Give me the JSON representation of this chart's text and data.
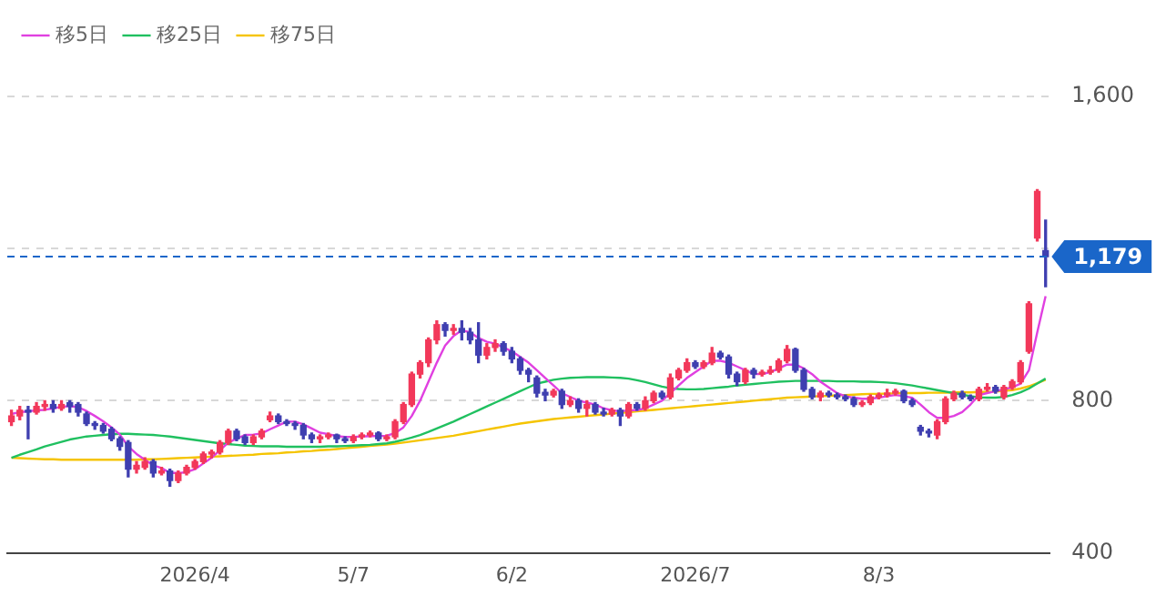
{
  "chart_data": {
    "type": "candlestick",
    "legend": "top left",
    "grid": "y",
    "ylim": [
      400,
      1600
    ],
    "yticks": [
      400,
      800,
      {
        "value": 1200,
        "label": null
      },
      {
        "value": 1600,
        "label": "1,600"
      }
    ],
    "ref_lines": [
      {
        "axis": "y",
        "value": 1179,
        "label": "1,179",
        "color": "#1a66c9",
        "line_style": "dashed"
      }
    ],
    "categories": [
      null,
      null,
      null,
      null,
      null,
      null,
      null,
      null,
      null,
      null,
      null,
      null,
      null,
      null,
      null,
      null,
      null,
      null,
      null,
      null,
      null,
      null,
      "2026/4",
      null,
      null,
      null,
      null,
      null,
      null,
      null,
      null,
      null,
      null,
      null,
      null,
      null,
      null,
      null,
      null,
      null,
      null,
      "5/7",
      null,
      null,
      null,
      null,
      null,
      null,
      null,
      null,
      null,
      null,
      null,
      null,
      null,
      null,
      null,
      null,
      null,
      null,
      "6/2",
      null,
      null,
      null,
      null,
      null,
      null,
      null,
      null,
      null,
      null,
      null,
      null,
      null,
      null,
      null,
      null,
      null,
      null,
      null,
      null,
      null,
      "2026/7",
      null,
      null,
      null,
      null,
      null,
      null,
      null,
      null,
      null,
      null,
      null,
      null,
      null,
      null,
      null,
      null,
      null,
      null,
      null,
      null,
      null,
      "8/3",
      null,
      null,
      null,
      null,
      null,
      null,
      null,
      null,
      null,
      null,
      null,
      null,
      null,
      null,
      null,
      null,
      null,
      null,
      null,
      null
    ],
    "ohlc": [
      [
        745,
        775,
        735,
        760
      ],
      [
        760,
        785,
        750,
        775
      ],
      [
        775,
        785,
        700,
        770
      ],
      [
        770,
        795,
        765,
        785
      ],
      [
        785,
        800,
        775,
        790
      ],
      [
        790,
        800,
        770,
        780
      ],
      [
        780,
        800,
        775,
        790
      ],
      [
        795,
        800,
        770,
        785
      ],
      [
        790,
        795,
        760,
        770
      ],
      [
        765,
        770,
        735,
        740
      ],
      [
        740,
        745,
        725,
        735
      ],
      [
        735,
        740,
        715,
        720
      ],
      [
        725,
        730,
        695,
        700
      ],
      [
        700,
        705,
        670,
        680
      ],
      [
        690,
        695,
        600,
        620
      ],
      [
        620,
        640,
        610,
        630
      ],
      [
        625,
        650,
        620,
        640
      ],
      [
        640,
        645,
        600,
        610
      ],
      [
        610,
        625,
        605,
        615
      ],
      [
        615,
        620,
        575,
        590
      ],
      [
        590,
        615,
        585,
        610
      ],
      [
        610,
        630,
        605,
        625
      ],
      [
        625,
        645,
        620,
        640
      ],
      [
        640,
        665,
        635,
        660
      ],
      [
        660,
        670,
        650,
        665
      ],
      [
        665,
        695,
        660,
        690
      ],
      [
        690,
        725,
        685,
        720
      ],
      [
        720,
        725,
        695,
        700
      ],
      [
        705,
        710,
        685,
        690
      ],
      [
        690,
        710,
        685,
        705
      ],
      [
        705,
        725,
        700,
        720
      ],
      [
        750,
        770,
        745,
        760
      ],
      [
        760,
        765,
        740,
        745
      ],
      [
        745,
        750,
        735,
        740
      ],
      [
        740,
        745,
        725,
        735
      ],
      [
        735,
        740,
        700,
        710
      ],
      [
        710,
        715,
        690,
        700
      ],
      [
        700,
        710,
        690,
        705
      ],
      [
        705,
        715,
        700,
        710
      ],
      [
        710,
        712,
        690,
        700
      ],
      [
        700,
        705,
        690,
        695
      ],
      [
        695,
        710,
        690,
        705
      ],
      [
        705,
        715,
        700,
        710
      ],
      [
        710,
        720,
        705,
        715
      ],
      [
        715,
        718,
        695,
        700
      ],
      [
        700,
        710,
        695,
        705
      ],
      [
        705,
        750,
        700,
        745
      ],
      [
        745,
        795,
        740,
        790
      ],
      [
        790,
        875,
        785,
        870
      ],
      [
        870,
        905,
        860,
        900
      ],
      [
        900,
        965,
        890,
        960
      ],
      [
        960,
        1010,
        950,
        1000
      ],
      [
        1000,
        1005,
        970,
        985
      ],
      [
        985,
        1000,
        975,
        990
      ],
      [
        990,
        1010,
        960,
        980
      ],
      [
        980,
        990,
        950,
        960
      ],
      [
        960,
        1005,
        900,
        920
      ],
      [
        920,
        950,
        910,
        940
      ],
      [
        940,
        960,
        930,
        950
      ],
      [
        950,
        955,
        920,
        930
      ],
      [
        930,
        940,
        900,
        910
      ],
      [
        910,
        915,
        870,
        880
      ],
      [
        880,
        885,
        850,
        870
      ],
      [
        860,
        865,
        810,
        820
      ],
      [
        822,
        830,
        800,
        815
      ],
      [
        815,
        830,
        810,
        825
      ],
      [
        825,
        830,
        780,
        790
      ],
      [
        790,
        810,
        785,
        800
      ],
      [
        800,
        805,
        770,
        780
      ],
      [
        780,
        800,
        760,
        790
      ],
      [
        790,
        795,
        765,
        770
      ],
      [
        770,
        780,
        760,
        765
      ],
      [
        765,
        780,
        760,
        775
      ],
      [
        775,
        780,
        735,
        760
      ],
      [
        760,
        795,
        755,
        790
      ],
      [
        790,
        795,
        775,
        780
      ],
      [
        780,
        810,
        775,
        800
      ],
      [
        800,
        825,
        795,
        820
      ],
      [
        820,
        825,
        805,
        810
      ],
      [
        810,
        870,
        805,
        860
      ],
      [
        860,
        885,
        855,
        880
      ],
      [
        880,
        910,
        875,
        900
      ],
      [
        900,
        905,
        885,
        890
      ],
      [
        890,
        905,
        885,
        900
      ],
      [
        900,
        940,
        895,
        925
      ],
      [
        925,
        930,
        910,
        915
      ],
      [
        915,
        920,
        860,
        870
      ],
      [
        870,
        875,
        840,
        850
      ],
      [
        850,
        885,
        845,
        880
      ],
      [
        880,
        885,
        860,
        870
      ],
      [
        870,
        880,
        865,
        875
      ],
      [
        875,
        890,
        870,
        880
      ],
      [
        880,
        910,
        875,
        905
      ],
      [
        905,
        945,
        900,
        935
      ],
      [
        935,
        938,
        875,
        880
      ],
      [
        880,
        885,
        825,
        830
      ],
      [
        830,
        835,
        805,
        810
      ],
      [
        810,
        825,
        800,
        820
      ],
      [
        820,
        825,
        810,
        815
      ],
      [
        815,
        820,
        805,
        810
      ],
      [
        810,
        815,
        800,
        805
      ],
      [
        805,
        810,
        785,
        790
      ],
      [
        790,
        800,
        785,
        795
      ],
      [
        795,
        815,
        790,
        810
      ],
      [
        810,
        820,
        805,
        815
      ],
      [
        815,
        830,
        810,
        820
      ],
      [
        820,
        830,
        815,
        825
      ],
      [
        825,
        828,
        795,
        800
      ],
      [
        800,
        805,
        785,
        790
      ],
      [
        730,
        735,
        710,
        720
      ],
      [
        720,
        725,
        705,
        715
      ],
      [
        710,
        750,
        700,
        745
      ],
      [
        745,
        810,
        740,
        805
      ],
      [
        805,
        825,
        800,
        820
      ],
      [
        820,
        825,
        805,
        810
      ],
      [
        810,
        815,
        800,
        805
      ],
      [
        805,
        835,
        800,
        830
      ],
      [
        830,
        845,
        825,
        835
      ],
      [
        835,
        840,
        820,
        825
      ],
      [
        810,
        840,
        805,
        835
      ],
      [
        835,
        855,
        830,
        850
      ],
      [
        850,
        905,
        845,
        900
      ],
      [
        930,
        1060,
        925,
        1055
      ],
      [
        1228,
        1355,
        1220,
        1350
      ],
      [
        1195,
        1275,
        1100,
        1179
      ]
    ],
    "series": [
      {
        "name": "移5日",
        "type": "line",
        "color": "#e040e0",
        "values": [
          765,
          770,
          772,
          775,
          776,
          780,
          784,
          786,
          783,
          773,
          760,
          746,
          730,
          711,
          680,
          660,
          645,
          630,
          623,
          610,
          610,
          612,
          620,
          635,
          650,
          670,
          690,
          700,
          710,
          711,
          714,
          725,
          735,
          745,
          745,
          738,
          727,
          716,
          712,
          707,
          705,
          705,
          706,
          707,
          707,
          708,
          715,
          730,
          760,
          800,
          850,
          900,
          945,
          970,
          985,
          980,
          965,
          955,
          950,
          940,
          930,
          915,
          900,
          880,
          860,
          840,
          820,
          810,
          800,
          795,
          790,
          780,
          775,
          772,
          775,
          775,
          780,
          790,
          800,
          820,
          840,
          860,
          875,
          890,
          905,
          905,
          900,
          890,
          880,
          870,
          870,
          875,
          885,
          895,
          895,
          885,
          870,
          850,
          835,
          820,
          812,
          808,
          805,
          805,
          808,
          812,
          815,
          812,
          808,
          790,
          770,
          755,
          755,
          760,
          770,
          790,
          815,
          820,
          825,
          830,
          835,
          845,
          880,
          980,
          1075
        ]
      },
      {
        "name": "移25日",
        "type": "line",
        "color": "#20c060",
        "values": [
          650,
          658,
          665,
          672,
          680,
          686,
          692,
          698,
          702,
          706,
          708,
          710,
          712,
          713,
          713,
          712,
          711,
          710,
          708,
          706,
          703,
          700,
          697,
          694,
          691,
          688,
          686,
          684,
          682,
          681,
          680,
          680,
          680,
          679,
          679,
          679,
          679,
          679,
          680,
          680,
          681,
          682,
          683,
          684,
          686,
          688,
          692,
          697,
          703,
          710,
          718,
          727,
          736,
          745,
          755,
          765,
          775,
          785,
          795,
          805,
          815,
          825,
          835,
          845,
          850,
          855,
          858,
          860,
          861,
          862,
          862,
          862,
          861,
          860,
          858,
          854,
          849,
          843,
          837,
          833,
          831,
          830,
          830,
          831,
          833,
          835,
          837,
          840,
          842,
          844,
          846,
          848,
          850,
          851,
          852,
          852,
          852,
          852,
          852,
          851,
          851,
          851,
          850,
          850,
          849,
          848,
          846,
          843,
          840,
          836,
          832,
          828,
          824,
          820,
          816,
          812,
          809,
          808,
          808,
          810,
          815,
          822,
          832,
          845,
          858
        ]
      },
      {
        "name": "移75日",
        "type": "line",
        "color": "#f5c400",
        "values": [
          650,
          649,
          648,
          647,
          646,
          646,
          645,
          645,
          645,
          645,
          645,
          645,
          645,
          645,
          645,
          645,
          646,
          646,
          647,
          648,
          649,
          650,
          651,
          652,
          653,
          654,
          655,
          656,
          657,
          658,
          660,
          661,
          662,
          664,
          665,
          667,
          668,
          670,
          671,
          673,
          675,
          677,
          679,
          681,
          683,
          685,
          687,
          690,
          693,
          696,
          699,
          702,
          705,
          708,
          712,
          716,
          720,
          724,
          728,
          732,
          736,
          740,
          743,
          746,
          749,
          752,
          754,
          756,
          758,
          760,
          762,
          764,
          766,
          768,
          770,
          772,
          774,
          776,
          778,
          780,
          782,
          784,
          786,
          788,
          790,
          792,
          794,
          796,
          798,
          800,
          802,
          804,
          806,
          808,
          809,
          810,
          811,
          812,
          813,
          814,
          815,
          816,
          817,
          818,
          818,
          819,
          819,
          820,
          820,
          820,
          821,
          821,
          821,
          822,
          822,
          822,
          823,
          823,
          824,
          826,
          828,
          832,
          838,
          846,
          855
        ]
      }
    ]
  }
}
